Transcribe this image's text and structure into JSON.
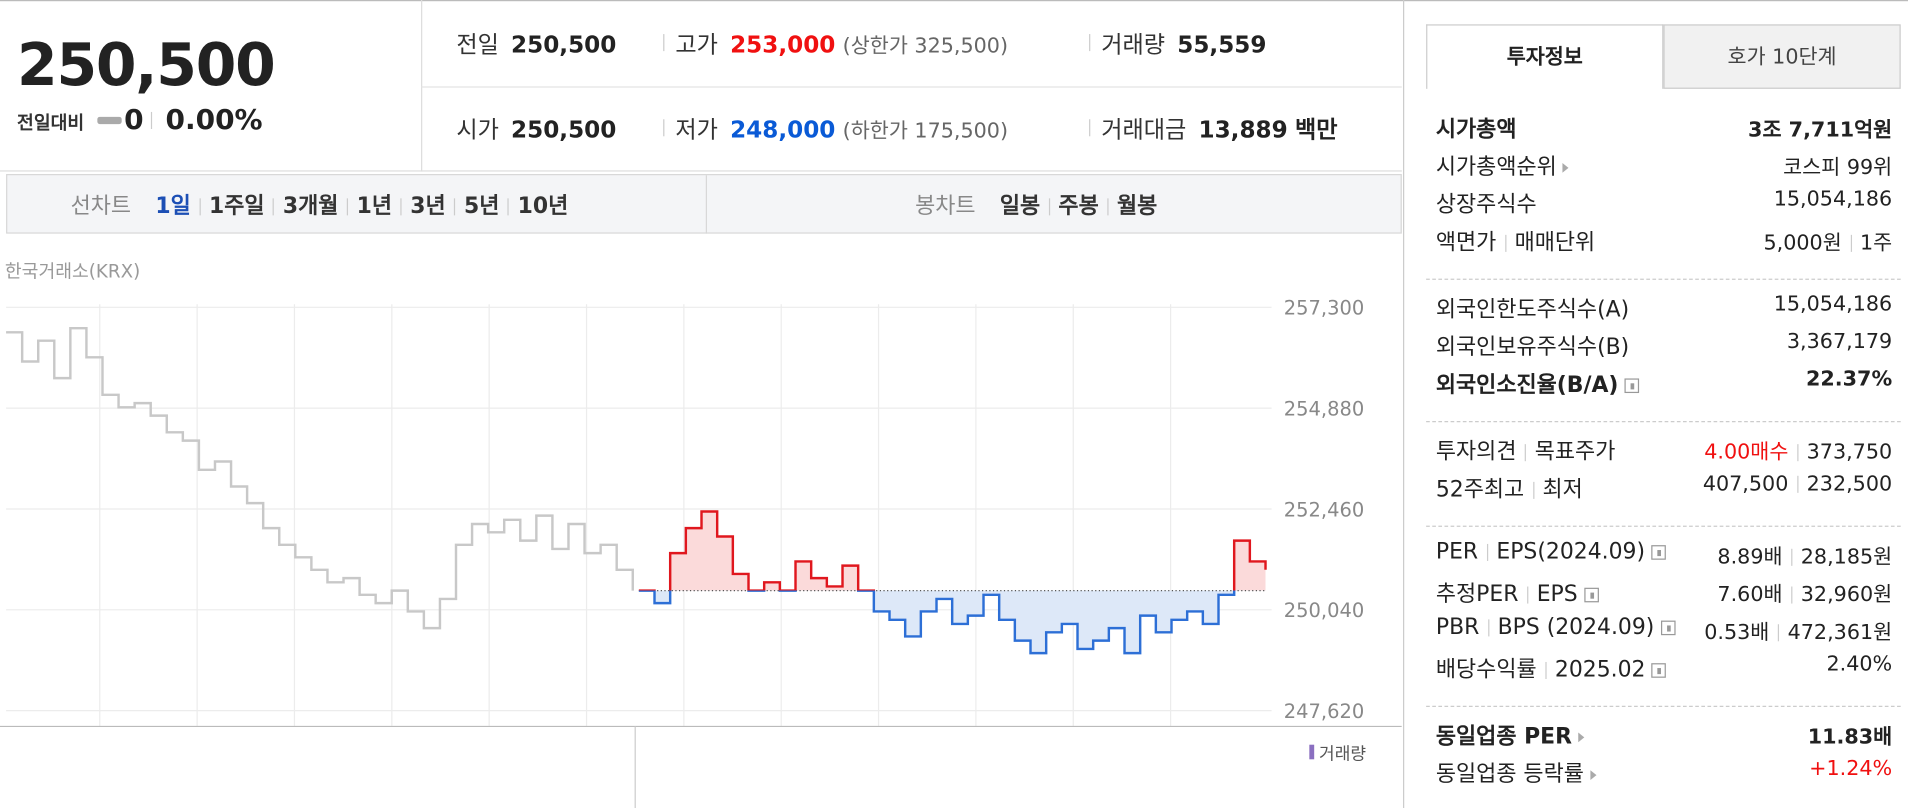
{
  "quote": {
    "price": "250,500",
    "change_label": "전일대비",
    "change": "0",
    "change_rate": "0.00%",
    "items": [
      [
        {
          "label": "전일",
          "value": "250,500"
        },
        {
          "label": "고가",
          "value": "253,000",
          "color": "#f01010",
          "note": "(상한가 325,500)"
        },
        {
          "label": "거래량",
          "value": "55,559"
        }
      ],
      [
        {
          "label": "시가",
          "value": "250,500"
        },
        {
          "label": "저가",
          "value": "248,000",
          "color": "#0a5ad6",
          "note": "(하한가 175,500)"
        },
        {
          "label": "거래대금",
          "value": "13,889",
          "unit": "백만"
        }
      ]
    ]
  },
  "chart_tabs": {
    "line_label": "선차트",
    "periods": [
      "1일",
      "1주일",
      "3개월",
      "1년",
      "3년",
      "5년",
      "10년"
    ],
    "candle_label": "봉차트",
    "candles": [
      "일봉",
      "주봉",
      "월봉"
    ]
  },
  "chart_data": {
    "type": "line",
    "source": "한국거래소(KRX)",
    "volume_label": "거래량",
    "baseline": 250500,
    "ylim": [
      247240,
      257550
    ],
    "yticks": [
      {
        "value": 247620,
        "label": "247,620"
      },
      {
        "value": 250040,
        "label": "250,040"
      },
      {
        "value": 252460,
        "label": "252,460"
      },
      {
        "value": 254880,
        "label": "254,880"
      },
      {
        "value": 257300,
        "label": "257,300"
      }
    ],
    "grid": true,
    "series": [
      {
        "color": "#c8c8c8",
        "values": [
          256700,
          256000,
          256500,
          255600,
          256800,
          256100,
          255200,
          254900,
          255000,
          254700,
          254300,
          254100,
          253400,
          253600,
          253000,
          252600,
          252000,
          251600,
          251300,
          251000,
          250700,
          250800,
          250400,
          250200,
          250500,
          250000,
          249600,
          250300,
          251600,
          252100,
          251900,
          252200,
          251700,
          252300,
          251500,
          252100,
          251400,
          251600,
          251000,
          250500
        ]
      },
      {
        "color": "#e0171e",
        "color_below": "#2d6fd6",
        "values": [
          250500,
          250200,
          251400,
          252000,
          252400,
          251800,
          250900,
          250500,
          250700,
          250500,
          251200,
          250800,
          250600,
          251100,
          250500,
          250000,
          249800,
          249400,
          250000,
          250300,
          249700,
          249900,
          250400,
          249800,
          249300,
          249000,
          249500,
          249700,
          249100,
          249300,
          249600,
          249000,
          249900,
          249500,
          249800,
          250000,
          249700,
          250400,
          251700,
          251200,
          251000
        ]
      }
    ]
  },
  "invest_info": {
    "tabs": [
      "투자정보",
      "호가 10단계"
    ],
    "sections": [
      [
        {
          "label": [
            "시가총액"
          ],
          "value": [
            "3조 7,711억원"
          ],
          "bold": true
        },
        {
          "label": [
            "시가총액순위"
          ],
          "arrow": true,
          "value": [
            "코스피 99위"
          ]
        },
        {
          "label": [
            "상장주식수"
          ],
          "value": [
            "15,054,186"
          ]
        },
        {
          "label": [
            "액면가",
            "매매단위"
          ],
          "value": [
            "5,000원",
            "1주"
          ]
        }
      ],
      [
        {
          "label": [
            "외국인한도주식수(A)"
          ],
          "value": [
            "15,054,186"
          ]
        },
        {
          "label": [
            "외국인보유주식수(B)"
          ],
          "value": [
            "3,367,179"
          ]
        },
        {
          "label": [
            "외국인소진율(B/A)"
          ],
          "help": true,
          "value": [
            "22.37%"
          ],
          "bold": true
        }
      ],
      [
        {
          "label": [
            "투자의견",
            "목표주가"
          ],
          "value": [
            "4.00매수",
            "373,750"
          ],
          "color": "#f01010"
        },
        {
          "label": [
            "52주최고",
            "최저"
          ],
          "value": [
            "407,500",
            "232,500"
          ]
        }
      ],
      [
        {
          "label": [
            "PER",
            "EPS(2024.09)"
          ],
          "help": true,
          "value": [
            "8.89배",
            "28,185원"
          ]
        },
        {
          "label": [
            "추정PER",
            "EPS"
          ],
          "help": true,
          "value": [
            "7.60배",
            "32,960원"
          ]
        },
        {
          "label": [
            "PBR",
            "BPS (2024.09)"
          ],
          "help": true,
          "value": [
            "0.53배",
            "472,361원"
          ]
        },
        {
          "label": [
            "배당수익률",
            "2025.02"
          ],
          "help": true,
          "value": [
            "2.40%"
          ]
        }
      ],
      [
        {
          "label": [
            "동일업종 PER"
          ],
          "arrow": true,
          "value": [
            "11.83배"
          ],
          "bold": true
        },
        {
          "label": [
            "동일업종 등락률"
          ],
          "arrow": true,
          "value": [
            "+1.24%"
          ],
          "color": "#f01010"
        }
      ]
    ]
  }
}
